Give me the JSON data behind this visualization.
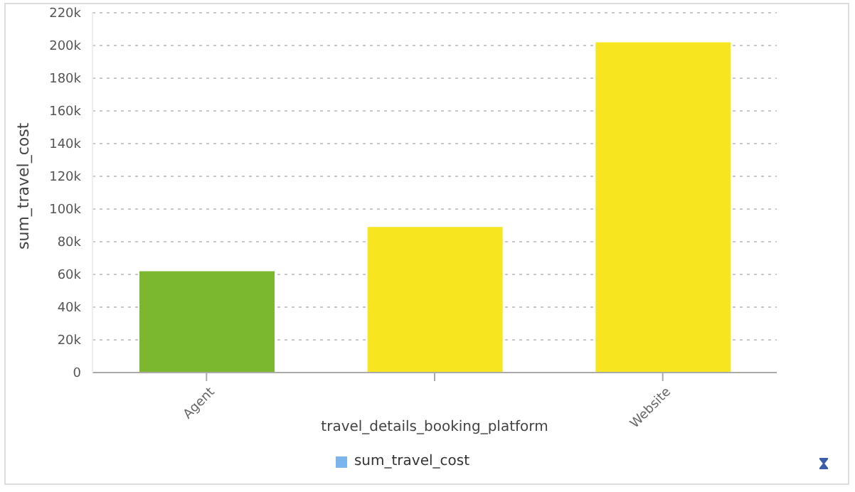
{
  "chart_data": {
    "type": "bar",
    "xlabel": "travel_details_booking_platform",
    "ylabel": "sum_travel_cost",
    "categories": [
      "Agent",
      null,
      "Website"
    ],
    "series": [
      {
        "name": "sum_travel_cost",
        "color": "#7cb5ec",
        "colors": [
          "#7cb82f",
          "#f7e51f",
          "#f7e51f"
        ],
        "values": [
          62000,
          89000,
          202000
        ]
      }
    ],
    "ylim": [
      0,
      220000
    ],
    "yticks": [
      0,
      {
        "value": 20000,
        "label": "20k"
      },
      {
        "value": 40000,
        "label": "40k"
      },
      {
        "value": 60000,
        "label": "60k"
      },
      {
        "value": 80000,
        "label": "80k"
      },
      {
        "value": 100000,
        "label": "100k"
      },
      {
        "value": 120000,
        "label": "120k"
      },
      {
        "value": 140000,
        "label": "140k"
      },
      {
        "value": 160000,
        "label": "160k"
      },
      {
        "value": 180000,
        "label": "180k"
      },
      {
        "value": 200000,
        "label": "200k"
      },
      {
        "value": 220000,
        "label": "220k"
      }
    ],
    "grid": "y",
    "legend": "bottom"
  }
}
